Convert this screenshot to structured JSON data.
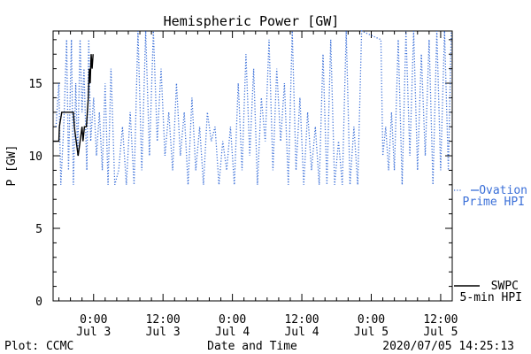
{
  "chart_data": {
    "type": "line",
    "title": "Hemispheric Power [GW]",
    "xlabel": "Date and Time",
    "ylabel": "P [GW]",
    "ylim": [
      0,
      18.6
    ],
    "xlim": [
      "2020-07-02T17:00",
      "2020-07-05T14:00"
    ],
    "y_ticks": [
      0,
      5,
      10,
      15
    ],
    "x_ticks": [
      {
        "x": "2020-07-03T00:00",
        "time": "0:00",
        "date": "Jul 3"
      },
      {
        "x": "2020-07-03T12:00",
        "time": "12:00",
        "date": "Jul 3"
      },
      {
        "x": "2020-07-04T00:00",
        "time": "0:00",
        "date": "Jul 4"
      },
      {
        "x": "2020-07-04T12:00",
        "time": "12:00",
        "date": "Jul 4"
      },
      {
        "x": "2020-07-05T00:00",
        "time": "0:00",
        "date": "Jul 5"
      },
      {
        "x": "2020-07-05T12:00",
        "time": "12:00",
        "date": "Jul 5"
      }
    ],
    "grid": false,
    "legend": "right",
    "series": [
      {
        "name_line1": "SWPC",
        "name_line2": "5-min HPI",
        "color": "#000000",
        "style": "solid",
        "points": [
          [
            "2020-07-02T17:00",
            11
          ],
          [
            "2020-07-02T18:00",
            11
          ],
          [
            "2020-07-02T18:05",
            12
          ],
          [
            "2020-07-02T18:30",
            13
          ],
          [
            "2020-07-02T19:30",
            13
          ],
          [
            "2020-07-02T20:30",
            13
          ],
          [
            "2020-07-02T20:40",
            12
          ],
          [
            "2020-07-02T21:00",
            11
          ],
          [
            "2020-07-02T21:20",
            10
          ],
          [
            "2020-07-02T21:40",
            11
          ],
          [
            "2020-07-02T22:00",
            12
          ],
          [
            "2020-07-02T22:10",
            11
          ],
          [
            "2020-07-02T22:25",
            12
          ],
          [
            "2020-07-02T22:45",
            12
          ],
          [
            "2020-07-02T22:55",
            13
          ],
          [
            "2020-07-02T23:05",
            14
          ],
          [
            "2020-07-02T23:15",
            16
          ],
          [
            "2020-07-02T23:25",
            15
          ],
          [
            "2020-07-02T23:35",
            17
          ],
          [
            "2020-07-02T23:45",
            16
          ],
          [
            "2020-07-02T23:55",
            17
          ]
        ]
      },
      {
        "name_line1": "Ovation",
        "name_line2": "Prime HPI",
        "color": "#3a6fd8",
        "style": "dotted",
        "points": [
          [
            "2020-07-02T17:30",
            12
          ],
          [
            "2020-07-02T18:00",
            15
          ],
          [
            "2020-07-02T18:20",
            8
          ],
          [
            "2020-07-02T18:50",
            12
          ],
          [
            "2020-07-02T19:20",
            18
          ],
          [
            "2020-07-02T19:40",
            9
          ],
          [
            "2020-07-02T20:10",
            18
          ],
          [
            "2020-07-02T20:30",
            8
          ],
          [
            "2020-07-02T20:55",
            15
          ],
          [
            "2020-07-02T21:15",
            10
          ],
          [
            "2020-07-02T21:40",
            18
          ],
          [
            "2020-07-02T22:00",
            13
          ],
          [
            "2020-07-02T22:20",
            16
          ],
          [
            "2020-07-02T22:50",
            9
          ],
          [
            "2020-07-02T23:10",
            18
          ],
          [
            "2020-07-02T23:30",
            11
          ],
          [
            "2020-07-03T00:00",
            14
          ],
          [
            "2020-07-03T00:30",
            10
          ],
          [
            "2020-07-03T01:00",
            13
          ],
          [
            "2020-07-03T01:30",
            9
          ],
          [
            "2020-07-03T02:00",
            15
          ],
          [
            "2020-07-03T02:30",
            8
          ],
          [
            "2020-07-03T03:00",
            16
          ],
          [
            "2020-07-03T03:40",
            8
          ],
          [
            "2020-07-03T04:20",
            9
          ],
          [
            "2020-07-03T05:00",
            12
          ],
          [
            "2020-07-03T05:40",
            8
          ],
          [
            "2020-07-03T06:20",
            13
          ],
          [
            "2020-07-03T07:00",
            8
          ],
          [
            "2020-07-03T07:40",
            18.6
          ],
          [
            "2020-07-03T08:20",
            9
          ],
          [
            "2020-07-03T09:00",
            18.6
          ],
          [
            "2020-07-03T09:40",
            10
          ],
          [
            "2020-07-03T10:20",
            18.6
          ],
          [
            "2020-07-03T11:00",
            11
          ],
          [
            "2020-07-03T11:40",
            16
          ],
          [
            "2020-07-03T12:20",
            10
          ],
          [
            "2020-07-03T13:00",
            13
          ],
          [
            "2020-07-03T13:40",
            9
          ],
          [
            "2020-07-03T14:20",
            15
          ],
          [
            "2020-07-03T15:00",
            10
          ],
          [
            "2020-07-03T15:40",
            13
          ],
          [
            "2020-07-03T16:20",
            8
          ],
          [
            "2020-07-03T17:00",
            14
          ],
          [
            "2020-07-03T17:40",
            9
          ],
          [
            "2020-07-03T18:20",
            12
          ],
          [
            "2020-07-03T19:00",
            8
          ],
          [
            "2020-07-03T19:40",
            13
          ],
          [
            "2020-07-03T20:20",
            11
          ],
          [
            "2020-07-03T21:00",
            12
          ],
          [
            "2020-07-03T21:40",
            8
          ],
          [
            "2020-07-03T22:20",
            11
          ],
          [
            "2020-07-03T23:00",
            9
          ],
          [
            "2020-07-03T23:40",
            12
          ],
          [
            "2020-07-04T00:20",
            8
          ],
          [
            "2020-07-04T01:00",
            15
          ],
          [
            "2020-07-04T01:40",
            9
          ],
          [
            "2020-07-04T02:20",
            17
          ],
          [
            "2020-07-04T03:00",
            10
          ],
          [
            "2020-07-04T03:40",
            16
          ],
          [
            "2020-07-04T04:20",
            8
          ],
          [
            "2020-07-04T05:00",
            14
          ],
          [
            "2020-07-04T05:40",
            11
          ],
          [
            "2020-07-04T06:20",
            18
          ],
          [
            "2020-07-04T07:00",
            9
          ],
          [
            "2020-07-04T07:40",
            16
          ],
          [
            "2020-07-04T08:20",
            11
          ],
          [
            "2020-07-04T09:00",
            15
          ],
          [
            "2020-07-04T09:40",
            8
          ],
          [
            "2020-07-04T10:20",
            18.6
          ],
          [
            "2020-07-04T11:00",
            9
          ],
          [
            "2020-07-04T11:40",
            14
          ],
          [
            "2020-07-04T12:20",
            8
          ],
          [
            "2020-07-04T13:00",
            13
          ],
          [
            "2020-07-04T13:40",
            9
          ],
          [
            "2020-07-04T14:20",
            12
          ],
          [
            "2020-07-04T15:00",
            8
          ],
          [
            "2020-07-04T15:40",
            17
          ],
          [
            "2020-07-04T16:20",
            8
          ],
          [
            "2020-07-04T17:00",
            18
          ],
          [
            "2020-07-04T17:40",
            8
          ],
          [
            "2020-07-04T18:20",
            11
          ],
          [
            "2020-07-04T19:00",
            8
          ],
          [
            "2020-07-04T19:40",
            18.6
          ],
          [
            "2020-07-04T20:20",
            8
          ],
          [
            "2020-07-04T21:00",
            12
          ],
          [
            "2020-07-04T21:40",
            8
          ],
          [
            "2020-07-04T22:20",
            18.6
          ],
          [
            "2020-07-05T01:40",
            18
          ],
          [
            "2020-07-05T02:00",
            10
          ],
          [
            "2020-07-05T02:30",
            12
          ],
          [
            "2020-07-05T03:00",
            9
          ],
          [
            "2020-07-05T03:30",
            13
          ],
          [
            "2020-07-05T04:00",
            9
          ],
          [
            "2020-07-05T04:40",
            18
          ],
          [
            "2020-07-05T05:20",
            8
          ],
          [
            "2020-07-05T06:00",
            18.6
          ],
          [
            "2020-07-05T06:40",
            10
          ],
          [
            "2020-07-05T07:20",
            18.6
          ],
          [
            "2020-07-05T08:00",
            9
          ],
          [
            "2020-07-05T08:40",
            17
          ],
          [
            "2020-07-05T09:20",
            10
          ],
          [
            "2020-07-05T10:00",
            18
          ],
          [
            "2020-07-05T10:40",
            8
          ],
          [
            "2020-07-05T11:20",
            18.6
          ],
          [
            "2020-07-05T12:00",
            9
          ],
          [
            "2020-07-05T12:40",
            18.6
          ],
          [
            "2020-07-05T13:20",
            9
          ],
          [
            "2020-07-05T13:50",
            18.6
          ]
        ]
      }
    ]
  },
  "footer": {
    "source": "Plot: CCMC",
    "timestamp": "2020/07/05 14:25:13"
  }
}
